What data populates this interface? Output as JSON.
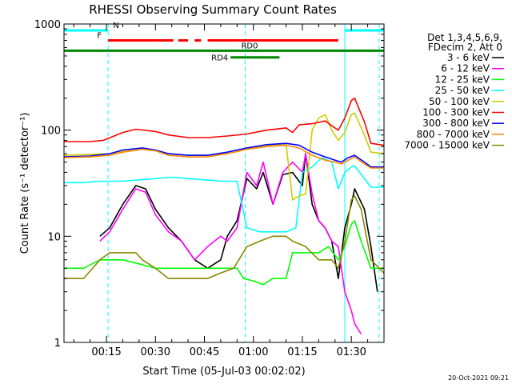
{
  "chart_data": {
    "type": "line",
    "title": "RHESSI Observing Summary Count Rates",
    "xlabel": "Start Time (05-Jul-03 00:02:02)",
    "ylabel": "Count Rate (s⁻¹ detector⁻¹)",
    "yscale": "log",
    "ylim": [
      1,
      1000
    ],
    "xlim_minutes": [
      2,
      100
    ],
    "x_ticks": [
      {
        "t": 15,
        "label": "00:15"
      },
      {
        "t": 30,
        "label": "00:30"
      },
      {
        "t": 45,
        "label": "00:45"
      },
      {
        "t": 60,
        "label": "01:00"
      },
      {
        "t": 75,
        "label": "01:15"
      },
      {
        "t": 90,
        "label": "01:30"
      }
    ],
    "y_ticks": [
      {
        "v": 1,
        "label": "1"
      },
      {
        "v": 10,
        "label": "10"
      },
      {
        "v": 100,
        "label": "100"
      },
      {
        "v": 1000,
        "label": "1000"
      }
    ],
    "legend": {
      "placement": "right",
      "header": [
        "Det 1,3,4,5,6,9,",
        "FDecim 2, Att 0"
      ]
    },
    "series": [
      {
        "name": "3 - 6 keV",
        "color": "#000000",
        "points": [
          [
            13,
            10
          ],
          [
            16,
            12
          ],
          [
            20,
            20
          ],
          [
            24,
            30
          ],
          [
            27,
            28
          ],
          [
            30,
            18
          ],
          [
            34,
            12
          ],
          [
            38,
            9
          ],
          [
            42,
            6
          ],
          [
            46,
            5
          ],
          [
            50,
            6
          ],
          [
            52,
            10
          ],
          [
            55,
            14
          ],
          [
            58,
            35
          ],
          [
            61,
            28
          ],
          [
            63,
            40
          ],
          [
            66,
            20
          ],
          [
            69,
            38
          ],
          [
            72,
            40
          ],
          [
            75,
            30
          ],
          [
            76,
            60
          ],
          [
            78,
            20
          ],
          [
            80,
            14
          ],
          [
            82,
            12
          ],
          [
            84,
            9
          ],
          [
            86,
            4
          ],
          [
            88,
            12
          ],
          [
            90,
            20
          ],
          [
            91,
            28
          ],
          [
            94,
            18
          ],
          [
            96,
            8
          ],
          [
            98,
            3
          ]
        ]
      },
      {
        "name": "6 - 12 keV",
        "color": "#ff00ff",
        "points": [
          [
            13,
            9
          ],
          [
            16,
            11
          ],
          [
            20,
            18
          ],
          [
            24,
            28
          ],
          [
            27,
            26
          ],
          [
            30,
            16
          ],
          [
            34,
            11
          ],
          [
            38,
            9
          ],
          [
            42,
            6
          ],
          [
            46,
            8
          ],
          [
            50,
            10
          ],
          [
            52,
            9
          ],
          [
            55,
            12
          ],
          [
            58,
            40
          ],
          [
            61,
            30
          ],
          [
            63,
            50
          ],
          [
            66,
            20
          ],
          [
            69,
            40
          ],
          [
            72,
            50
          ],
          [
            75,
            40
          ],
          [
            76,
            60
          ],
          [
            78,
            25
          ],
          [
            80,
            14
          ],
          [
            82,
            12
          ],
          [
            84,
            9
          ],
          [
            86,
            8
          ],
          [
            88,
            3
          ],
          [
            90,
            2
          ],
          [
            91,
            1.5
          ],
          [
            93,
            1.2
          ]
        ]
      },
      {
        "name": "12 - 25 keV",
        "color": "#00ff00",
        "points": [
          [
            2,
            5
          ],
          [
            8,
            5
          ],
          [
            13,
            6
          ],
          [
            20,
            6
          ],
          [
            25,
            5.5
          ],
          [
            30,
            5
          ],
          [
            35,
            5
          ],
          [
            40,
            5
          ],
          [
            45,
            5
          ],
          [
            50,
            5
          ],
          [
            55,
            5
          ],
          [
            57,
            4
          ],
          [
            60,
            3.8
          ],
          [
            63,
            3.5
          ],
          [
            66,
            4
          ],
          [
            70,
            4
          ],
          [
            72,
            7
          ],
          [
            75,
            7
          ],
          [
            80,
            7
          ],
          [
            83,
            8
          ],
          [
            86,
            6
          ],
          [
            88,
            8
          ],
          [
            90,
            13
          ],
          [
            91,
            14
          ],
          [
            93,
            9
          ],
          [
            96,
            5
          ],
          [
            100,
            5
          ]
        ]
      },
      {
        "name": "25 - 50 keV",
        "color": "#00ffff",
        "points": [
          [
            2,
            32
          ],
          [
            8,
            32
          ],
          [
            13,
            33
          ],
          [
            20,
            33
          ],
          [
            25,
            34
          ],
          [
            30,
            35
          ],
          [
            35,
            36
          ],
          [
            40,
            35
          ],
          [
            45,
            34
          ],
          [
            50,
            33
          ],
          [
            55,
            33
          ],
          [
            58,
            12
          ],
          [
            62,
            11
          ],
          [
            66,
            11
          ],
          [
            70,
            11
          ],
          [
            73,
            12
          ],
          [
            75,
            40
          ],
          [
            78,
            45
          ],
          [
            81,
            55
          ],
          [
            84,
            50
          ],
          [
            86,
            28
          ],
          [
            88,
            40
          ],
          [
            90,
            45
          ],
          [
            91,
            46
          ],
          [
            94,
            35
          ],
          [
            96,
            29
          ],
          [
            100,
            29
          ]
        ]
      },
      {
        "name": "50 - 100 keV",
        "color": "#cccc00",
        "points": [
          [
            2,
            58
          ],
          [
            10,
            59
          ],
          [
            16,
            60
          ],
          [
            20,
            63
          ],
          [
            26,
            66
          ],
          [
            30,
            64
          ],
          [
            34,
            60
          ],
          [
            40,
            58
          ],
          [
            46,
            58
          ],
          [
            52,
            60
          ],
          [
            58,
            66
          ],
          [
            64,
            72
          ],
          [
            70,
            74
          ],
          [
            72,
            22
          ],
          [
            74,
            24
          ],
          [
            76,
            25
          ],
          [
            78,
            100
          ],
          [
            80,
            130
          ],
          [
            82,
            140
          ],
          [
            84,
            100
          ],
          [
            86,
            80
          ],
          [
            88,
            95
          ],
          [
            90,
            140
          ],
          [
            91,
            145
          ],
          [
            94,
            90
          ],
          [
            96,
            62
          ],
          [
            100,
            60
          ]
        ]
      },
      {
        "name": "100 - 300 keV",
        "color": "#ff0000",
        "points": [
          [
            2,
            78
          ],
          [
            10,
            78
          ],
          [
            14,
            80
          ],
          [
            20,
            95
          ],
          [
            24,
            102
          ],
          [
            30,
            97
          ],
          [
            34,
            90
          ],
          [
            40,
            85
          ],
          [
            46,
            85
          ],
          [
            52,
            88
          ],
          [
            58,
            92
          ],
          [
            64,
            100
          ],
          [
            70,
            105
          ],
          [
            72,
            95
          ],
          [
            74,
            112
          ],
          [
            78,
            115
          ],
          [
            82,
            122
          ],
          [
            84,
            110
          ],
          [
            86,
            100
          ],
          [
            88,
            130
          ],
          [
            90,
            190
          ],
          [
            91,
            200
          ],
          [
            94,
            120
          ],
          [
            96,
            75
          ],
          [
            100,
            72
          ]
        ]
      },
      {
        "name": "300 - 800 keV",
        "color": "#0000ff",
        "points": [
          [
            2,
            56
          ],
          [
            10,
            57
          ],
          [
            16,
            60
          ],
          [
            20,
            65
          ],
          [
            26,
            68
          ],
          [
            30,
            65
          ],
          [
            34,
            60
          ],
          [
            40,
            58
          ],
          [
            46,
            58
          ],
          [
            52,
            62
          ],
          [
            58,
            68
          ],
          [
            64,
            73
          ],
          [
            70,
            75
          ],
          [
            74,
            72
          ],
          [
            78,
            62
          ],
          [
            82,
            56
          ],
          [
            85,
            52
          ],
          [
            87,
            50
          ],
          [
            89,
            55
          ],
          [
            91,
            58
          ],
          [
            94,
            50
          ],
          [
            96,
            45
          ],
          [
            100,
            45
          ]
        ]
      },
      {
        "name": "800 - 7000 keV",
        "color": "#ff8800",
        "points": [
          [
            2,
            55
          ],
          [
            10,
            56
          ],
          [
            16,
            58
          ],
          [
            20,
            62
          ],
          [
            26,
            66
          ],
          [
            30,
            64
          ],
          [
            34,
            58
          ],
          [
            40,
            56
          ],
          [
            46,
            56
          ],
          [
            52,
            60
          ],
          [
            58,
            66
          ],
          [
            64,
            70
          ],
          [
            70,
            72
          ],
          [
            74,
            68
          ],
          [
            78,
            58
          ],
          [
            82,
            52
          ],
          [
            85,
            50
          ],
          [
            87,
            48
          ],
          [
            89,
            52
          ],
          [
            91,
            56
          ],
          [
            94,
            48
          ],
          [
            96,
            44
          ],
          [
            100,
            44
          ]
        ]
      },
      {
        "name": "7000 - 15000 keV",
        "color": "#888800",
        "points": [
          [
            2,
            4
          ],
          [
            8,
            4
          ],
          [
            13,
            6
          ],
          [
            16,
            7
          ],
          [
            20,
            7
          ],
          [
            24,
            7
          ],
          [
            26,
            6
          ],
          [
            30,
            5
          ],
          [
            34,
            4
          ],
          [
            38,
            4
          ],
          [
            42,
            4
          ],
          [
            46,
            4
          ],
          [
            50,
            4.5
          ],
          [
            54,
            5
          ],
          [
            58,
            8
          ],
          [
            62,
            9
          ],
          [
            66,
            10
          ],
          [
            70,
            10
          ],
          [
            72,
            9
          ],
          [
            76,
            8
          ],
          [
            80,
            6
          ],
          [
            84,
            6
          ],
          [
            86,
            5
          ],
          [
            88,
            9
          ],
          [
            90,
            22
          ],
          [
            91,
            24
          ],
          [
            93,
            18
          ],
          [
            96,
            6
          ],
          [
            100,
            4.5
          ]
        ]
      }
    ],
    "annotations": [
      {
        "text": "N",
        "color": "#00ffff",
        "segments": [
          [
            2,
            15.5
          ],
          [
            88,
            100
          ]
        ],
        "y": 870
      },
      {
        "text": "F",
        "color": "#ff0000",
        "segments": [
          [
            15.5,
            35.5
          ],
          [
            37,
            40
          ],
          [
            42,
            44
          ],
          [
            46,
            86
          ]
        ],
        "y": 700
      },
      {
        "text": "RD0",
        "color": "#008800",
        "segments": [
          [
            2,
            100
          ]
        ],
        "y": 560
      },
      {
        "text": "RD4",
        "color": "#008800",
        "segments": [
          [
            53,
            68
          ]
        ],
        "y": 485
      }
    ],
    "vertical_markers": [
      {
        "t": 15.5,
        "color": "#00ffff",
        "style": "dashed"
      },
      {
        "t": 57.5,
        "color": "#00ffff",
        "style": "dashed"
      },
      {
        "t": 88,
        "color": "#00ffff",
        "style": "solid"
      },
      {
        "t": 98.5,
        "color": "#00ffff",
        "style": "dashed"
      }
    ]
  },
  "footer": {
    "timestamp": "20-Oct-2021 09:21"
  }
}
